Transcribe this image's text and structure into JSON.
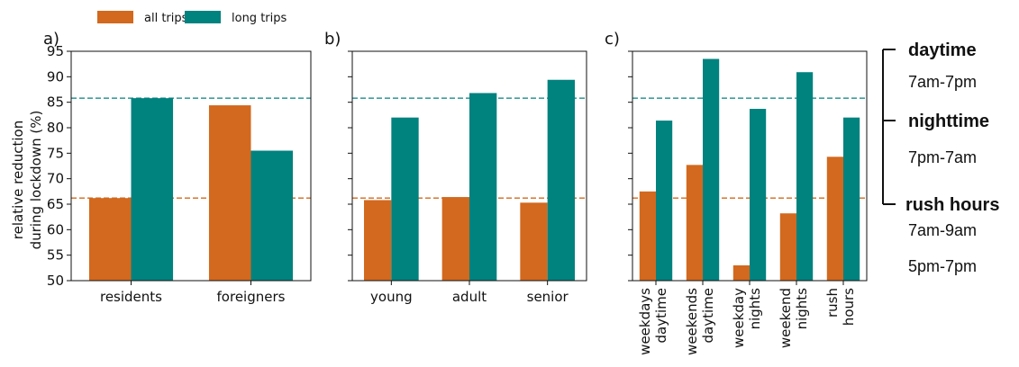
{
  "colors": {
    "all_trips": "#d2691e",
    "long_trips": "#00827f"
  },
  "legend": [
    {
      "label": "all trips",
      "color": "#d2691e"
    },
    {
      "label": "long trips",
      "color": "#00827f"
    }
  ],
  "ylabel_lines": [
    "relative reduction",
    "during lockdown (%)"
  ],
  "chart_data": [
    {
      "type": "bar",
      "panel_label": "a)",
      "categories": [
        [
          "residents"
        ],
        [
          "foreigners"
        ]
      ],
      "series": [
        {
          "name": "all trips",
          "values": [
            66.2,
            84.4
          ]
        },
        {
          "name": "long trips",
          "values": [
            85.8,
            75.5
          ]
        }
      ],
      "ylim": [
        50,
        95
      ],
      "yticks": [
        50,
        55,
        60,
        65,
        70,
        75,
        80,
        85,
        90,
        95
      ],
      "reference_lines": [
        {
          "value": 85.8,
          "series": "long trips"
        },
        {
          "value": 66.2,
          "series": "all trips"
        }
      ]
    },
    {
      "type": "bar",
      "panel_label": "b)",
      "categories": [
        [
          "young"
        ],
        [
          "adult"
        ],
        [
          "senior"
        ]
      ],
      "series": [
        {
          "name": "all trips",
          "values": [
            65.8,
            66.4,
            65.3
          ]
        },
        {
          "name": "long trips",
          "values": [
            82.0,
            86.8,
            89.4
          ]
        }
      ],
      "ylim": [
        50,
        95
      ],
      "reference_lines": [
        {
          "value": 85.8,
          "series": "long trips"
        },
        {
          "value": 66.2,
          "series": "all trips"
        }
      ]
    },
    {
      "type": "bar",
      "panel_label": "c)",
      "categories": [
        [
          "weekdays",
          "daytime"
        ],
        [
          "weekends",
          "daytime"
        ],
        [
          "weekday",
          "nights"
        ],
        [
          "weekend",
          "nights"
        ],
        [
          "rush",
          "hours"
        ]
      ],
      "series": [
        {
          "name": "all trips",
          "values": [
            67.5,
            72.7,
            53.0,
            63.2,
            74.3
          ]
        },
        {
          "name": "long trips",
          "values": [
            81.4,
            93.5,
            83.7,
            90.9,
            82.0
          ]
        }
      ],
      "ylim": [
        50,
        95
      ],
      "reference_lines": [
        {
          "value": 85.8,
          "series": "long trips"
        },
        {
          "value": 66.2,
          "series": "all trips"
        }
      ]
    }
  ],
  "time_windows": {
    "daytime": {
      "label": "daytime",
      "hours": [
        "7am-7pm"
      ]
    },
    "nighttime": {
      "label": "nighttime",
      "hours": [
        "7pm-7am"
      ]
    },
    "rush_hours": {
      "label": "rush hours",
      "hours": [
        "7am-9am",
        "5pm-7pm"
      ]
    }
  }
}
